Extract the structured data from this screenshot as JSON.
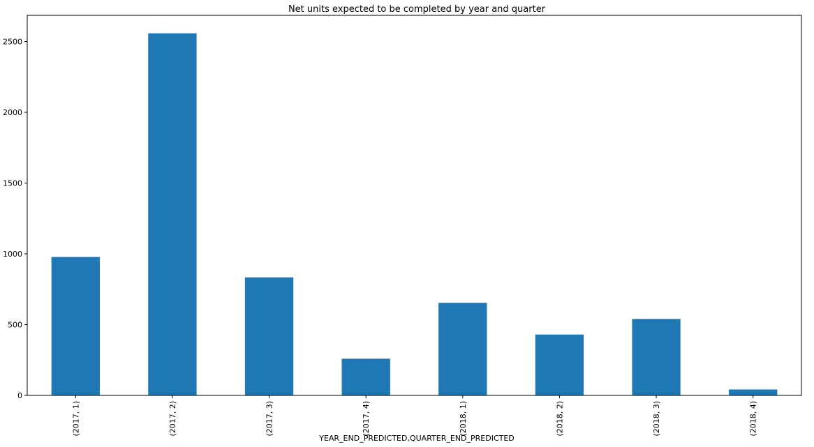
{
  "chart_data": {
    "type": "bar",
    "title": "Net units expected to be completed by year and quarter",
    "xlabel": "YEAR_END_PREDICTED,QUARTER_END_PREDICTED",
    "ylabel": "",
    "categories": [
      "(2017, 1)",
      "(2017, 2)",
      "(2017, 3)",
      "(2017, 4)",
      "(2018, 1)",
      "(2018, 2)",
      "(2018, 3)",
      "(2018, 4)"
    ],
    "values": [
      978,
      2558,
      834,
      259,
      654,
      430,
      540,
      42
    ],
    "ylim": [
      0,
      2685
    ],
    "yticks": [
      0,
      500,
      1000,
      1500,
      2000,
      2500
    ],
    "grid": false,
    "bar_color": "#1f77b4"
  }
}
